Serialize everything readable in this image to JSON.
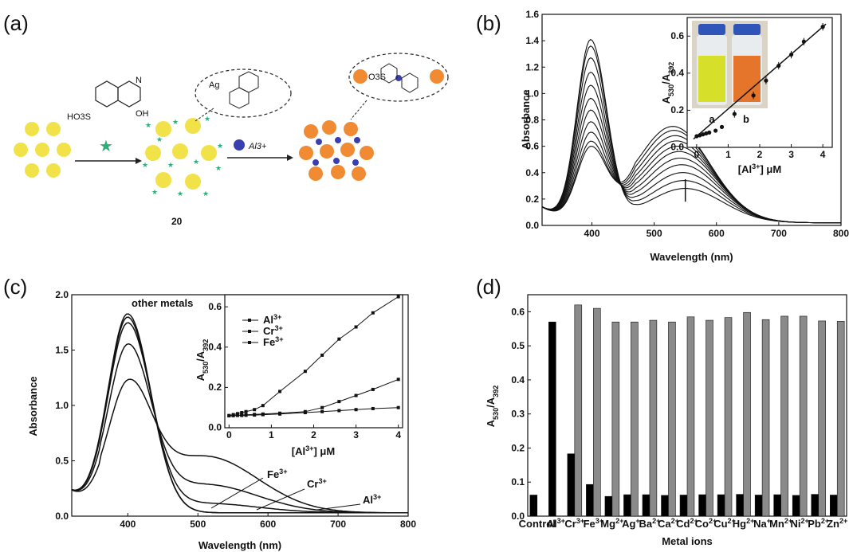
{
  "panel_labels": {
    "a": "(a)",
    "b": "(b)",
    "c": "(c)",
    "d": "(d)"
  },
  "scheme": {
    "star_label": "HO3S",
    "oh_label": "OH",
    "n_label": "N",
    "ag_label": "Ag",
    "ion_label": "Al3+",
    "compound_number": "20",
    "so3_label": "O3S",
    "colors": {
      "gold": "#f2e24a",
      "orange": "#f08a33",
      "star": "#2fae79",
      "ion": "#3a3fb0"
    }
  },
  "chart_data": [
    {
      "id": "b",
      "type": "line",
      "xlabel": "Wavelength (nm)",
      "ylabel": "Absorbance",
      "xlim": [
        320,
        800
      ],
      "ylim": [
        0,
        1.6
      ],
      "xticks": [
        400,
        500,
        600,
        700,
        800
      ],
      "yticks": [
        0.0,
        0.2,
        0.4,
        0.6,
        0.8,
        1.0,
        1.2,
        1.4,
        1.6
      ],
      "peak1_heights": [
        1.47,
        1.42,
        1.33,
        1.22,
        1.12,
        1.02,
        0.93,
        0.84,
        0.76,
        0.69,
        0.65
      ],
      "shoulder_heights": [
        0.26,
        0.32,
        0.38,
        0.44,
        0.49,
        0.54,
        0.58,
        0.62,
        0.66,
        0.7,
        0.73
      ],
      "inset": {
        "type": "scatter",
        "xlabel": "[Al3+] μM",
        "ylabel": "A530/A392",
        "xlim": [
          -0.3,
          4.3
        ],
        "ylim": [
          0,
          0.7
        ],
        "xticks": [
          0,
          1,
          2,
          3,
          4
        ],
        "yticks": [
          0.0,
          0.2,
          0.4,
          0.6
        ],
        "x": [
          0,
          0.1,
          0.2,
          0.3,
          0.4,
          0.6,
          0.8,
          1.2,
          1.8,
          2.2,
          2.6,
          3.0,
          3.4,
          4.0
        ],
        "y": [
          0.06,
          0.065,
          0.07,
          0.075,
          0.08,
          0.09,
          0.11,
          0.18,
          0.28,
          0.36,
          0.44,
          0.5,
          0.57,
          0.65
        ],
        "vial_labels": [
          "a",
          "b"
        ],
        "colors": {
          "vial_a": "#d6df2a",
          "vial_b": "#e6752c",
          "cap": "#2f55b8"
        }
      }
    },
    {
      "id": "c",
      "type": "line",
      "xlabel": "Wavelength (nm)",
      "ylabel": "Absorbance",
      "xlim": [
        320,
        800
      ],
      "ylim": [
        0,
        2.0
      ],
      "xticks": [
        400,
        500,
        600,
        700,
        800
      ],
      "yticks": [
        0.0,
        0.5,
        1.0,
        1.5,
        2.0
      ],
      "series": [
        {
          "name": "other metals",
          "peak": 1.83,
          "shoulder": 0.0
        },
        {
          "name": "other metals",
          "peak": 1.8,
          "shoulder": 0.0
        },
        {
          "name": "Fe3+",
          "peak": 1.72,
          "shoulder": 0.1
        },
        {
          "name": "Cr3+",
          "peak": 1.47,
          "shoulder": 0.3
        },
        {
          "name": "Al3+",
          "peak": 1.06,
          "shoulder": 0.6
        }
      ],
      "annotations": [
        "other metals",
        "Fe3+",
        "Cr3+",
        "Al3+"
      ],
      "inset": {
        "type": "line",
        "xlabel": "[Al3+] μM",
        "ylabel": "A530/A392",
        "xlim": [
          -0.1,
          4.1
        ],
        "ylim": [
          0,
          0.66
        ],
        "xticks": [
          0,
          1,
          2,
          3,
          4
        ],
        "yticks": [
          0.0,
          0.2,
          0.4,
          0.6
        ],
        "x": [
          0,
          0.1,
          0.2,
          0.3,
          0.4,
          0.6,
          0.8,
          1.2,
          1.8,
          2.2,
          2.6,
          3.0,
          3.4,
          4.0
        ],
        "series": [
          {
            "name": "Al3+",
            "values": [
              0.06,
              0.065,
              0.07,
              0.075,
              0.08,
              0.09,
              0.11,
              0.18,
              0.28,
              0.36,
              0.44,
              0.5,
              0.57,
              0.65
            ]
          },
          {
            "name": "Cr3+",
            "values": [
              0.06,
              0.061,
              0.062,
              0.063,
              0.064,
              0.066,
              0.068,
              0.072,
              0.08,
              0.1,
              0.13,
              0.16,
              0.19,
              0.24
            ]
          },
          {
            "name": "Fe3+",
            "values": [
              0.06,
              0.06,
              0.061,
              0.061,
              0.062,
              0.063,
              0.065,
              0.068,
              0.075,
              0.08,
              0.085,
              0.09,
              0.095,
              0.1
            ]
          }
        ],
        "legend": [
          "Al3+",
          "Cr3+",
          "Fe3+"
        ]
      }
    },
    {
      "id": "d",
      "type": "bar",
      "xlabel": "Metal ions",
      "ylabel": "A530/A392",
      "ylim": [
        0,
        0.65
      ],
      "yticks": [
        0.0,
        0.1,
        0.2,
        0.3,
        0.4,
        0.5,
        0.6
      ],
      "categories": [
        "Control",
        "Al3+",
        "Cr3+",
        "Fe3+",
        "Mg2+",
        "Ag+",
        "Ba2+",
        "Ca2+",
        "Cd2+",
        "Co2+",
        "Cu2+",
        "Hg2+",
        "Na+",
        "Mn2+",
        "Ni2+",
        "Pb2+",
        "Zn2+"
      ],
      "series": [
        {
          "values": [
            0.062,
            0.57,
            0.183,
            0.093,
            0.058,
            0.063,
            0.063,
            0.061,
            0.062,
            0.063,
            0.063,
            0.064,
            0.062,
            0.063,
            0.061,
            0.064,
            0.062
          ],
          "color": "#000000"
        },
        {
          "values": [
            null,
            null,
            0.62,
            0.61,
            0.57,
            0.57,
            0.575,
            0.57,
            0.585,
            0.575,
            0.583,
            0.598,
            0.577,
            0.587,
            0.587,
            0.573,
            0.572
          ],
          "color": "#8a8a8a"
        }
      ]
    }
  ]
}
